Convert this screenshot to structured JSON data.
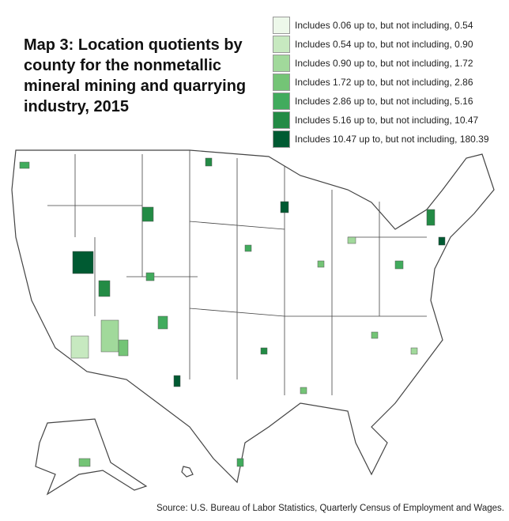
{
  "title": "Map 3: Location quotients by county for the nonmetallic mineral mining and quarrying industry, 2015",
  "legend": [
    {
      "label": "Includes 0.06 up to, but not including, 0.54",
      "color": "#edf8ea"
    },
    {
      "label": "Includes 0.54 up to, but not including, 0.90",
      "color": "#c7e9c0"
    },
    {
      "label": "Includes 0.90 up to, but not including, 1.72",
      "color": "#a1d99b"
    },
    {
      "label": "Includes 1.72 up to, but not including, 2.86",
      "color": "#74c476"
    },
    {
      "label": "Includes 2.86 up to, but not including, 5.16",
      "color": "#41ab5d"
    },
    {
      "label": "Includes 5.16 up to, but not including, 10.47",
      "color": "#238b45"
    },
    {
      "label": "Includes 10.47 up to, but not including, 180.39",
      "color": "#005a32"
    }
  ],
  "source": "Source: U.S. Bureau of Labor Statistics, Quarterly Census of Employment and Wages."
}
